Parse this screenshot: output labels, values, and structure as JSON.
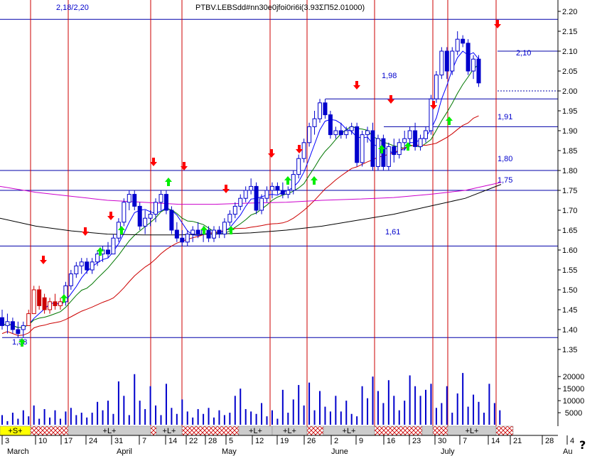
{
  "chart_data": {
    "type": "candlestick",
    "title_overlay": "PTBV.LEBSdd#nn30e0jfoi0ri6i(3.93ΣΠ52.01000)",
    "header_left": "2,18/2,20",
    "y_ticks": [
      "2.20",
      "2.15",
      "2.10",
      "2.05",
      "2.00",
      "1.95",
      "1.90",
      "1.85",
      "1.80",
      "1.75",
      "1.70",
      "1.65",
      "1.60",
      "1.55",
      "1.50",
      "1.45",
      "1.40",
      "1.35"
    ],
    "ylim": [
      1.325,
      2.215
    ],
    "volume_ticks": [
      "20000",
      "15000",
      "10000",
      "5000"
    ],
    "volume_max": 23000,
    "months": [
      "March",
      "April",
      "May",
      "June",
      "July",
      "Au"
    ],
    "day_ticks": [
      "3",
      "10",
      "17",
      "24",
      "31",
      "7",
      "14",
      "22",
      "28",
      "5",
      "12",
      "19",
      "26",
      "2",
      "9",
      "16",
      "23",
      "30",
      "7",
      "14",
      "21",
      "28",
      "4"
    ],
    "signal_bar": [
      {
        "label": "+S+",
        "kind": "S"
      },
      {
        "label": "",
        "kind": "X"
      },
      {
        "label": "+L+",
        "kind": "L"
      },
      {
        "label": "",
        "kind": "X"
      },
      {
        "label": "+L+",
        "kind": "L"
      },
      {
        "label": "",
        "kind": "X"
      },
      {
        "label": "+L+",
        "kind": "L"
      },
      {
        "label": "+L+",
        "kind": "L"
      },
      {
        "label": "",
        "kind": "X"
      },
      {
        "label": "+L+",
        "kind": "L"
      },
      {
        "label": "",
        "kind": "X"
      },
      {
        "label": "",
        "kind": "L"
      },
      {
        "label": "",
        "kind": "X"
      },
      {
        "label": "+L+",
        "kind": "L"
      },
      {
        "label": "",
        "kind": "X"
      }
    ],
    "level_lines": [
      {
        "value": 2.18,
        "label": ""
      },
      {
        "value": 2.1,
        "label": "2,10"
      },
      {
        "value": 1.98,
        "label": "1,98"
      },
      {
        "value": 1.91,
        "label": "1,91"
      },
      {
        "value": 1.8,
        "label": "1,80"
      },
      {
        "value": 1.75,
        "label": "1,75"
      },
      {
        "value": 1.61,
        "label": "1,61"
      },
      {
        "value": 1.38,
        "label": "1,38"
      }
    ],
    "dashed_level": 2.0,
    "candles": [
      {
        "o": 1.43,
        "h": 1.45,
        "l": 1.4,
        "c": 1.41
      },
      {
        "o": 1.41,
        "h": 1.44,
        "l": 1.39,
        "c": 1.42
      },
      {
        "o": 1.42,
        "h": 1.43,
        "l": 1.39,
        "c": 1.4
      },
      {
        "o": 1.4,
        "h": 1.42,
        "l": 1.38,
        "c": 1.39
      },
      {
        "o": 1.4,
        "h": 1.42,
        "l": 1.38,
        "c": 1.41
      },
      {
        "o": 1.41,
        "h": 1.45,
        "l": 1.41,
        "c": 1.44
      },
      {
        "o": 1.44,
        "h": 1.51,
        "l": 1.44,
        "c": 1.5
      },
      {
        "o": 1.5,
        "h": 1.51,
        "l": 1.45,
        "c": 1.46
      },
      {
        "o": 1.48,
        "h": 1.49,
        "l": 1.44,
        "c": 1.45
      },
      {
        "o": 1.45,
        "h": 1.48,
        "l": 1.44,
        "c": 1.47
      },
      {
        "o": 1.47,
        "h": 1.49,
        "l": 1.45,
        "c": 1.46
      },
      {
        "o": 1.46,
        "h": 1.48,
        "l": 1.45,
        "c": 1.47
      },
      {
        "o": 1.47,
        "h": 1.52,
        "l": 1.46,
        "c": 1.51
      },
      {
        "o": 1.51,
        "h": 1.55,
        "l": 1.5,
        "c": 1.54
      },
      {
        "o": 1.54,
        "h": 1.57,
        "l": 1.53,
        "c": 1.56
      },
      {
        "o": 1.56,
        "h": 1.58,
        "l": 1.54,
        "c": 1.57
      },
      {
        "o": 1.57,
        "h": 1.58,
        "l": 1.54,
        "c": 1.55
      },
      {
        "o": 1.55,
        "h": 1.58,
        "l": 1.54,
        "c": 1.57
      },
      {
        "o": 1.57,
        "h": 1.6,
        "l": 1.56,
        "c": 1.59
      },
      {
        "o": 1.59,
        "h": 1.61,
        "l": 1.57,
        "c": 1.6
      },
      {
        "o": 1.6,
        "h": 1.62,
        "l": 1.58,
        "c": 1.59
      },
      {
        "o": 1.59,
        "h": 1.64,
        "l": 1.59,
        "c": 1.63
      },
      {
        "o": 1.63,
        "h": 1.68,
        "l": 1.62,
        "c": 1.67
      },
      {
        "o": 1.67,
        "h": 1.73,
        "l": 1.66,
        "c": 1.72
      },
      {
        "o": 1.72,
        "h": 1.75,
        "l": 1.7,
        "c": 1.74
      },
      {
        "o": 1.74,
        "h": 1.75,
        "l": 1.7,
        "c": 1.71
      },
      {
        "o": 1.71,
        "h": 1.72,
        "l": 1.65,
        "c": 1.66
      },
      {
        "o": 1.66,
        "h": 1.7,
        "l": 1.64,
        "c": 1.68
      },
      {
        "o": 1.68,
        "h": 1.7,
        "l": 1.66,
        "c": 1.69
      },
      {
        "o": 1.69,
        "h": 1.73,
        "l": 1.67,
        "c": 1.72
      },
      {
        "o": 1.72,
        "h": 1.75,
        "l": 1.7,
        "c": 1.74
      },
      {
        "o": 1.74,
        "h": 1.75,
        "l": 1.69,
        "c": 1.7
      },
      {
        "o": 1.7,
        "h": 1.71,
        "l": 1.64,
        "c": 1.65
      },
      {
        "o": 1.65,
        "h": 1.67,
        "l": 1.62,
        "c": 1.63
      },
      {
        "o": 1.63,
        "h": 1.65,
        "l": 1.61,
        "c": 1.62
      },
      {
        "o": 1.62,
        "h": 1.65,
        "l": 1.61,
        "c": 1.64
      },
      {
        "o": 1.64,
        "h": 1.66,
        "l": 1.62,
        "c": 1.65
      },
      {
        "o": 1.65,
        "h": 1.67,
        "l": 1.63,
        "c": 1.64
      },
      {
        "o": 1.64,
        "h": 1.66,
        "l": 1.62,
        "c": 1.65
      },
      {
        "o": 1.65,
        "h": 1.66,
        "l": 1.62,
        "c": 1.63
      },
      {
        "o": 1.63,
        "h": 1.66,
        "l": 1.62,
        "c": 1.65
      },
      {
        "o": 1.65,
        "h": 1.66,
        "l": 1.63,
        "c": 1.64
      },
      {
        "o": 1.64,
        "h": 1.68,
        "l": 1.63,
        "c": 1.67
      },
      {
        "o": 1.67,
        "h": 1.7,
        "l": 1.66,
        "c": 1.69
      },
      {
        "o": 1.69,
        "h": 1.72,
        "l": 1.68,
        "c": 1.71
      },
      {
        "o": 1.71,
        "h": 1.74,
        "l": 1.7,
        "c": 1.73
      },
      {
        "o": 1.73,
        "h": 1.76,
        "l": 1.72,
        "c": 1.75
      },
      {
        "o": 1.75,
        "h": 1.78,
        "l": 1.74,
        "c": 1.76
      },
      {
        "o": 1.76,
        "h": 1.77,
        "l": 1.69,
        "c": 1.7
      },
      {
        "o": 1.7,
        "h": 1.74,
        "l": 1.69,
        "c": 1.73
      },
      {
        "o": 1.73,
        "h": 1.76,
        "l": 1.72,
        "c": 1.75
      },
      {
        "o": 1.75,
        "h": 1.77,
        "l": 1.73,
        "c": 1.76
      },
      {
        "o": 1.76,
        "h": 1.77,
        "l": 1.74,
        "c": 1.75
      },
      {
        "o": 1.75,
        "h": 1.77,
        "l": 1.73,
        "c": 1.74
      },
      {
        "o": 1.74,
        "h": 1.76,
        "l": 1.73,
        "c": 1.75
      },
      {
        "o": 1.75,
        "h": 1.8,
        "l": 1.74,
        "c": 1.79
      },
      {
        "o": 1.79,
        "h": 1.84,
        "l": 1.78,
        "c": 1.83
      },
      {
        "o": 1.83,
        "h": 1.88,
        "l": 1.82,
        "c": 1.87
      },
      {
        "o": 1.87,
        "h": 1.92,
        "l": 1.86,
        "c": 1.91
      },
      {
        "o": 1.91,
        "h": 1.95,
        "l": 1.89,
        "c": 1.93
      },
      {
        "o": 1.93,
        "h": 1.98,
        "l": 1.92,
        "c": 1.97
      },
      {
        "o": 1.97,
        "h": 1.98,
        "l": 1.93,
        "c": 1.94
      },
      {
        "o": 1.94,
        "h": 1.95,
        "l": 1.88,
        "c": 1.89
      },
      {
        "o": 1.89,
        "h": 1.91,
        "l": 1.88,
        "c": 1.9
      },
      {
        "o": 1.9,
        "h": 1.92,
        "l": 1.88,
        "c": 1.89
      },
      {
        "o": 1.89,
        "h": 1.91,
        "l": 1.88,
        "c": 1.9
      },
      {
        "o": 1.9,
        "h": 1.92,
        "l": 1.89,
        "c": 1.91
      },
      {
        "o": 1.91,
        "h": 1.92,
        "l": 1.81,
        "c": 1.82
      },
      {
        "o": 1.82,
        "h": 1.9,
        "l": 1.81,
        "c": 1.89
      },
      {
        "o": 1.89,
        "h": 1.91,
        "l": 1.87,
        "c": 1.9
      },
      {
        "o": 1.9,
        "h": 1.92,
        "l": 1.8,
        "c": 1.81
      },
      {
        "o": 1.81,
        "h": 1.89,
        "l": 1.8,
        "c": 1.88
      },
      {
        "o": 1.88,
        "h": 1.89,
        "l": 1.8,
        "c": 1.81
      },
      {
        "o": 1.81,
        "h": 1.87,
        "l": 1.8,
        "c": 1.86
      },
      {
        "o": 1.86,
        "h": 1.88,
        "l": 1.82,
        "c": 1.84
      },
      {
        "o": 1.84,
        "h": 1.88,
        "l": 1.83,
        "c": 1.87
      },
      {
        "o": 1.87,
        "h": 1.9,
        "l": 1.85,
        "c": 1.88
      },
      {
        "o": 1.88,
        "h": 1.91,
        "l": 1.86,
        "c": 1.9
      },
      {
        "o": 1.9,
        "h": 1.92,
        "l": 1.85,
        "c": 1.86
      },
      {
        "o": 1.86,
        "h": 1.89,
        "l": 1.85,
        "c": 1.88
      },
      {
        "o": 1.88,
        "h": 1.91,
        "l": 1.87,
        "c": 1.9
      },
      {
        "o": 1.9,
        "h": 1.99,
        "l": 1.89,
        "c": 1.98
      },
      {
        "o": 1.98,
        "h": 2.05,
        "l": 1.97,
        "c": 2.04
      },
      {
        "o": 2.04,
        "h": 2.11,
        "l": 2.03,
        "c": 2.1
      },
      {
        "o": 2.1,
        "h": 2.11,
        "l": 2.03,
        "c": 2.05
      },
      {
        "o": 2.05,
        "h": 2.11,
        "l": 2.04,
        "c": 2.1
      },
      {
        "o": 2.1,
        "h": 2.15,
        "l": 2.09,
        "c": 2.13
      },
      {
        "o": 2.13,
        "h": 2.14,
        "l": 2.11,
        "c": 2.12
      },
      {
        "o": 2.12,
        "h": 2.13,
        "l": 2.04,
        "c": 2.05
      },
      {
        "o": 2.05,
        "h": 2.09,
        "l": 2.03,
        "c": 2.08
      },
      {
        "o": 2.08,
        "h": 2.09,
        "l": 2.01,
        "c": 2.02
      }
    ],
    "volumes": [
      4000,
      1500,
      5000,
      2500,
      6000,
      3500,
      8000,
      2500,
      6500,
      3000,
      6000,
      2500,
      5500,
      7000,
      4000,
      5000,
      3000,
      5000,
      9500,
      6000,
      10000,
      4500,
      18000,
      12000,
      4000,
      21000,
      10000,
      6500,
      16000,
      8000,
      4000,
      17000,
      7000,
      4500,
      10500,
      5500,
      3000,
      6500,
      4500,
      7000,
      3000,
      6000,
      4000,
      5000,
      12000,
      15000,
      6500,
      5500,
      4500,
      9000,
      3500,
      6000,
      2500,
      14500,
      5000,
      10500,
      16500,
      8000,
      17500,
      6000,
      14000,
      7500,
      5500,
      12000,
      5500,
      10000,
      4500,
      3500,
      16000,
      11000,
      20000,
      14000,
      9000,
      18500,
      12000,
      6000,
      10000,
      20500,
      16000,
      12000,
      14500,
      17000,
      7000,
      9000,
      16000,
      5000,
      13000,
      21500,
      7500,
      12500,
      9500,
      5000,
      17000,
      9000,
      6000
    ]
  }
}
